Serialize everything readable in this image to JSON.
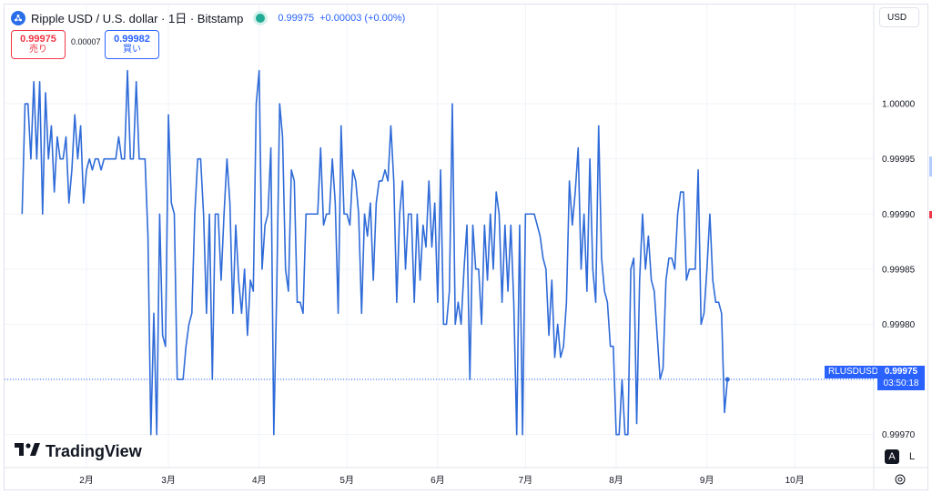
{
  "header": {
    "title": "Ripple USD / U.S. dollar · 1日 · Bitstamp",
    "last": "0.99975",
    "change": "+0.00003 (+0.00%)"
  },
  "quote": {
    "sell_price": "0.99975",
    "sell_label": "売り",
    "spread": "0.00007",
    "buy_price": "0.99982",
    "buy_label": "買い"
  },
  "currency_selector": "USD",
  "brand": "TradingView",
  "scale_buttons": {
    "auto": "A",
    "log": "L"
  },
  "last_price_tag": {
    "symbol": "RLUSDUSD",
    "price": "0.99975",
    "countdown": "03:50:18"
  },
  "colors": {
    "line": "#2f6bd8",
    "accent": "#2962ff",
    "sell": "#f23645",
    "grid": "#f0f3fa"
  },
  "chart_data": {
    "type": "line",
    "title": "",
    "xlabel": "",
    "ylabel": "",
    "ylim": [
      0.99967,
      1.00009
    ],
    "y_ticks": [
      "1.00000",
      "0.99995",
      "0.99990",
      "0.99985",
      "0.99980",
      "0.99975",
      "0.99970"
    ],
    "y_tick_values": [
      1.0,
      0.99995,
      0.9999,
      0.99985,
      0.9998,
      0.99975,
      0.9997
    ],
    "x_ticks": [
      "2月",
      "3月",
      "4月",
      "5月",
      "6月",
      "7月",
      "8月",
      "9月",
      "10月"
    ],
    "x_tick_days": [
      22,
      50,
      81,
      111,
      142,
      172,
      203,
      234,
      264
    ],
    "xlim_days": [
      -6,
      291
    ],
    "last_value": 0.99975,
    "series": [
      {
        "values": [
          0.9999,
          1.0,
          1.0,
          0.99995,
          1.00002,
          0.99995,
          1.00002,
          0.9999,
          1.00001,
          0.99995,
          0.99998,
          0.99992,
          0.99997,
          0.99995,
          0.99995,
          0.99997,
          0.99991,
          0.99994,
          0.99999,
          0.99995,
          0.99998,
          0.99991,
          0.99994,
          0.99995,
          0.99994,
          0.99995,
          0.99995,
          0.99994,
          0.99995,
          0.99995,
          0.99995,
          0.99995,
          0.99995,
          0.99997,
          0.99995,
          0.99995,
          1.00003,
          0.99995,
          0.99995,
          1.00002,
          0.99995,
          0.99995,
          0.99995,
          0.99988,
          0.9997,
          0.99981,
          0.9997,
          0.9999,
          0.99979,
          0.99978,
          0.99999,
          0.99991,
          0.9999,
          0.99975,
          0.99975,
          0.99975,
          0.99978,
          0.9998,
          0.99981,
          0.9999,
          0.99995,
          0.99995,
          0.9999,
          0.99981,
          0.9999,
          0.99975,
          0.9999,
          0.9999,
          0.99984,
          0.9999,
          0.99995,
          0.99991,
          0.99981,
          0.99989,
          0.99984,
          0.99981,
          0.99985,
          0.99979,
          0.99984,
          0.99983,
          1.0,
          1.00003,
          0.99985,
          0.99989,
          0.9999,
          0.99996,
          0.9997,
          0.99983,
          1.0,
          0.99997,
          0.99985,
          0.99983,
          0.99994,
          0.99993,
          0.99982,
          0.99982,
          0.99981,
          0.9999,
          0.9999,
          0.9999,
          0.9999,
          0.9999,
          0.99996,
          0.99989,
          0.9999,
          0.9999,
          0.99995,
          0.99991,
          0.99981,
          0.99998,
          0.9999,
          0.9999,
          0.99989,
          0.99994,
          0.99993,
          0.9999,
          0.99981,
          0.9999,
          0.99988,
          0.99991,
          0.99984,
          0.99991,
          0.99993,
          0.99993,
          0.99994,
          0.99993,
          0.99998,
          0.99993,
          0.99982,
          0.9999,
          0.99993,
          0.99985,
          0.9999,
          0.9999,
          0.99982,
          0.9999,
          0.99984,
          0.99989,
          0.99987,
          0.99993,
          0.99987,
          0.99991,
          0.99982,
          0.99994,
          0.9998,
          0.9998,
          0.99983,
          1.0,
          0.9998,
          0.99982,
          0.9998,
          0.99985,
          0.99989,
          0.99975,
          0.99989,
          0.99985,
          0.99985,
          0.9998,
          0.99989,
          0.99984,
          0.9999,
          0.99985,
          0.99992,
          0.9999,
          0.99982,
          0.99989,
          0.99983,
          0.99989,
          0.99982,
          0.9997,
          0.99989,
          0.9997,
          0.9999,
          0.9999,
          0.9999,
          0.9999,
          0.99989,
          0.99988,
          0.99986,
          0.99985,
          0.99979,
          0.99984,
          0.99977,
          0.9998,
          0.99977,
          0.99978,
          0.99982,
          0.99993,
          0.99989,
          0.99992,
          0.99996,
          0.99985,
          0.9999,
          0.99983,
          0.99995,
          0.99985,
          0.99982,
          0.99998,
          0.99986,
          0.99983,
          0.99982,
          0.99978,
          0.99978,
          0.9997,
          0.9997,
          0.99975,
          0.9997,
          0.9997,
          0.99985,
          0.99986,
          0.99971,
          0.99984,
          0.9999,
          0.99985,
          0.99988,
          0.99984,
          0.99983,
          0.99979,
          0.99975,
          0.99976,
          0.99984,
          0.99986,
          0.99986,
          0.99985,
          0.9999,
          0.99992,
          0.99992,
          0.99984,
          0.99985,
          0.99985,
          0.99985,
          0.99994,
          0.9998,
          0.99981,
          0.99985,
          0.9999,
          0.99984,
          0.99982,
          0.99982,
          0.99981,
          0.99972,
          0.99975
        ]
      }
    ]
  }
}
